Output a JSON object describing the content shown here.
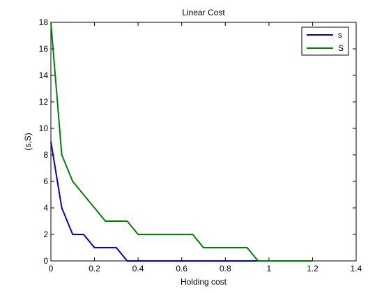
{
  "chart_data": {
    "type": "line",
    "title": "Linear Cost",
    "xlabel": "Holding cost",
    "ylabel": "(s,S)",
    "xlim": [
      0,
      1.4
    ],
    "ylim": [
      0,
      18
    ],
    "xticks": [
      0,
      0.2,
      0.4,
      0.6,
      0.8,
      1,
      1.2,
      1.4
    ],
    "yticks": [
      0,
      2,
      4,
      6,
      8,
      10,
      12,
      14,
      16,
      18
    ],
    "xtick_labels": [
      "0",
      "0.2",
      "0.4",
      "0.6",
      "0.8",
      "1",
      "1.2",
      "1.4"
    ],
    "ytick_labels": [
      "0",
      "2",
      "4",
      "6",
      "8",
      "10",
      "12",
      "14",
      "16",
      "18"
    ],
    "grid": false,
    "legend_position": "top-right",
    "series": [
      {
        "name": "s",
        "color": "#0000cc",
        "x": [
          0,
          0.05,
          0.1,
          0.15,
          0.2,
          0.25,
          0.3,
          0.35,
          0.4,
          0.45,
          0.5,
          0.55,
          0.6,
          0.65,
          0.7,
          0.75,
          0.8,
          0.85,
          0.9,
          0.95,
          1.0,
          1.05,
          1.1,
          1.15,
          1.2
        ],
        "values": [
          9,
          4,
          2,
          2,
          1,
          1,
          1,
          0,
          0,
          0,
          0,
          0,
          0,
          0,
          0,
          0,
          0,
          0,
          0,
          0,
          0,
          0,
          0,
          0,
          0
        ]
      },
      {
        "name": "S",
        "color": "#007f00",
        "x": [
          0,
          0.05,
          0.1,
          0.15,
          0.2,
          0.25,
          0.3,
          0.35,
          0.4,
          0.45,
          0.5,
          0.55,
          0.6,
          0.65,
          0.7,
          0.75,
          0.8,
          0.85,
          0.9,
          0.95,
          1.0,
          1.05,
          1.1,
          1.15,
          1.2
        ],
        "values": [
          18,
          8,
          6,
          5,
          4,
          3,
          3,
          3,
          2,
          2,
          2,
          2,
          2,
          2,
          1,
          1,
          1,
          1,
          1,
          0,
          0,
          0,
          0,
          0,
          0
        ]
      }
    ]
  }
}
